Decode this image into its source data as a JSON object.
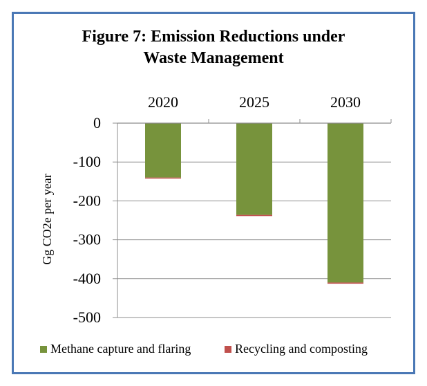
{
  "chart_data": {
    "type": "bar",
    "title_lines": [
      "Figure 7: Emission Reductions under",
      "Waste Management"
    ],
    "ylabel": "Gg CO2e per year",
    "categories": [
      "2020",
      "2025",
      "2030"
    ],
    "ylim": [
      -500,
      0
    ],
    "yticks": [
      0,
      -100,
      -200,
      -300,
      -400,
      -500
    ],
    "ytick_labels": [
      "0",
      "-100",
      "-200",
      "-300",
      "-400",
      "-500"
    ],
    "grid": true,
    "legend_position": "bottom",
    "series": [
      {
        "name": "Methane capture and flaring",
        "color": "#77933c",
        "values": [
          -140,
          -236,
          -410
        ]
      },
      {
        "name": "Recycling and composting",
        "color": "#c0504d",
        "values": [
          -2,
          -3,
          -3
        ]
      }
    ]
  }
}
